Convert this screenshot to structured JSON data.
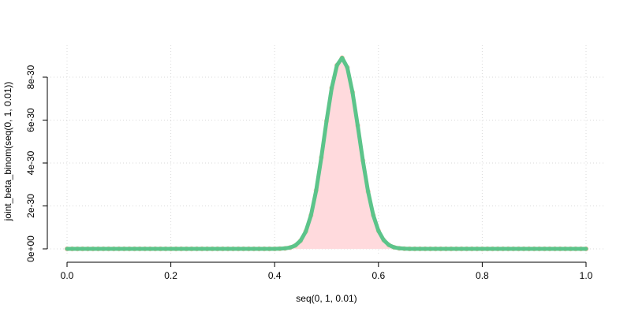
{
  "chart_data": {
    "type": "area",
    "title": "",
    "xlabel": "seq(0, 1, 0.01)",
    "ylabel": "joint_beta_binom(seq(0, 1, 0.01))",
    "xlim": [
      0,
      1
    ],
    "ylim": [
      0,
      9e-30
    ],
    "xticks": [
      0,
      0.2,
      0.4,
      0.6,
      0.8,
      1.0
    ],
    "xtick_labels": [
      "0.0",
      "0.2",
      "0.4",
      "0.6",
      "0.8",
      "1.0"
    ],
    "yticks": [
      0,
      2e-30,
      4e-30,
      6e-30,
      8e-30
    ],
    "ytick_labels": [
      "0e+00",
      "2e-30",
      "4e-30",
      "6e-30",
      "8e-30"
    ],
    "grid": true,
    "colors": {
      "line": "#5cc48a",
      "fill": "#ffdadd",
      "points": "#f3c9b2",
      "grid": "#d9d9d9"
    },
    "series": [
      {
        "x": [
          0.0,
          0.01,
          0.02,
          0.03,
          0.04,
          0.05,
          0.06,
          0.07,
          0.08,
          0.09,
          0.1,
          0.11,
          0.12,
          0.13,
          0.14,
          0.15,
          0.16,
          0.17,
          0.18,
          0.19,
          0.2,
          0.21,
          0.22,
          0.23,
          0.24,
          0.25,
          0.26,
          0.27,
          0.28,
          0.29,
          0.3,
          0.31,
          0.32,
          0.33,
          0.34,
          0.35,
          0.36,
          0.37,
          0.38,
          0.39,
          0.4,
          0.41,
          0.42,
          0.43,
          0.44,
          0.45,
          0.46,
          0.47,
          0.48,
          0.49,
          0.5,
          0.51,
          0.52,
          0.53,
          0.54,
          0.55,
          0.56,
          0.57,
          0.58,
          0.59,
          0.6,
          0.61,
          0.62,
          0.63,
          0.64,
          0.65,
          0.66,
          0.67,
          0.68,
          0.69,
          0.7,
          0.71,
          0.72,
          0.73,
          0.74,
          0.75,
          0.76,
          0.77,
          0.78,
          0.79,
          0.8,
          0.81,
          0.82,
          0.83,
          0.84,
          0.85,
          0.86,
          0.87,
          0.88,
          0.89,
          0.9,
          0.91,
          0.92,
          0.93,
          0.94,
          0.95,
          0.96,
          0.97,
          0.98,
          0.99,
          1.0
        ],
        "y": [
          0,
          0,
          0,
          0,
          0,
          0,
          0,
          0,
          0,
          0,
          0,
          0,
          0,
          0,
          0,
          0,
          0,
          0,
          0,
          0,
          0,
          0,
          0,
          0,
          0,
          0,
          0,
          0,
          0,
          0,
          0,
          0,
          0,
          0,
          0,
          0,
          0,
          0,
          0,
          0,
          2e-33,
          7e-33,
          2.2e-32,
          6.2e-32,
          1.6e-31,
          3.8e-31,
          8.1e-31,
          1.56e-30,
          2.72e-30,
          4.26e-30,
          5.96e-30,
          7.5e-30,
          8.55e-30,
          8.9e-30,
          8.45e-30,
          7.3e-30,
          5.75e-30,
          4.11e-30,
          2.67e-30,
          1.57e-30,
          8.4e-31,
          4.1e-31,
          1.8e-31,
          7.2e-32,
          2.6e-32,
          8e-33,
          2e-33,
          0,
          0,
          0,
          0,
          0,
          0,
          0,
          0,
          0,
          0,
          0,
          0,
          0,
          0,
          0,
          0,
          0,
          0,
          0,
          0,
          0,
          0,
          0,
          0,
          0,
          0,
          0,
          0,
          0,
          0,
          0,
          0,
          0,
          0
        ]
      }
    ]
  }
}
